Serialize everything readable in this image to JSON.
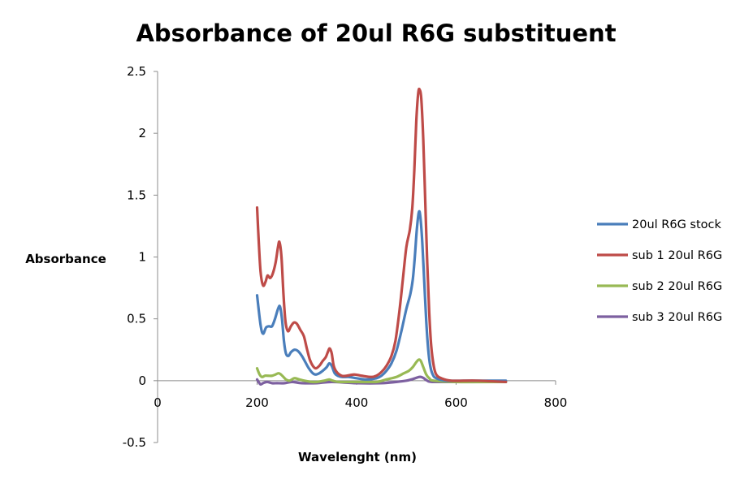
{
  "chart_data": {
    "type": "line",
    "title": "Absorbance  of 20ul R6G substituent",
    "xlabel": "Wavelenght (nm)",
    "ylabel": "Absorbance",
    "xlim": [
      0,
      800
    ],
    "ylim": [
      -0.5,
      2.5
    ],
    "x_ticks": [
      0,
      200,
      400,
      600,
      800
    ],
    "y_ticks": [
      -0.5,
      0,
      0.5,
      1,
      1.5,
      2,
      2.5
    ],
    "x_tick_labels": [
      "0",
      "200",
      "400",
      "600",
      "800"
    ],
    "y_tick_labels": [
      "-0.5",
      "0",
      "0.5",
      "1",
      "1.5",
      "2",
      "2.5"
    ],
    "grid": false,
    "legend_position": "right",
    "series": [
      {
        "name": "20ul R6G stock",
        "color": "#4a7ebb",
        "points": [
          [
            200,
            0.69
          ],
          [
            207,
            0.45
          ],
          [
            212,
            0.38
          ],
          [
            218,
            0.43
          ],
          [
            224,
            0.44
          ],
          [
            230,
            0.44
          ],
          [
            236,
            0.5
          ],
          [
            242,
            0.58
          ],
          [
            246,
            0.6
          ],
          [
            250,
            0.5
          ],
          [
            254,
            0.32
          ],
          [
            258,
            0.22
          ],
          [
            263,
            0.2
          ],
          [
            268,
            0.23
          ],
          [
            275,
            0.25
          ],
          [
            282,
            0.24
          ],
          [
            290,
            0.2
          ],
          [
            297,
            0.15
          ],
          [
            304,
            0.1
          ],
          [
            312,
            0.06
          ],
          [
            318,
            0.05
          ],
          [
            325,
            0.06
          ],
          [
            332,
            0.08
          ],
          [
            340,
            0.11
          ],
          [
            345,
            0.14
          ],
          [
            350,
            0.12
          ],
          [
            356,
            0.06
          ],
          [
            362,
            0.04
          ],
          [
            372,
            0.03
          ],
          [
            385,
            0.03
          ],
          [
            400,
            0.02
          ],
          [
            420,
            0.01
          ],
          [
            440,
            0.02
          ],
          [
            450,
            0.04
          ],
          [
            460,
            0.08
          ],
          [
            470,
            0.14
          ],
          [
            480,
            0.24
          ],
          [
            490,
            0.4
          ],
          [
            500,
            0.58
          ],
          [
            508,
            0.7
          ],
          [
            513,
            0.82
          ],
          [
            517,
            1.0
          ],
          [
            521,
            1.22
          ],
          [
            525,
            1.36
          ],
          [
            528,
            1.33
          ],
          [
            532,
            1.12
          ],
          [
            536,
            0.8
          ],
          [
            540,
            0.48
          ],
          [
            544,
            0.25
          ],
          [
            548,
            0.12
          ],
          [
            553,
            0.05
          ],
          [
            560,
            0.02
          ],
          [
            580,
            0.0
          ],
          [
            620,
            0.0
          ],
          [
            700,
            0.0
          ]
        ]
      },
      {
        "name": "sub 1 20ul R6G",
        "color": "#be4b48",
        "points": [
          [
            200,
            1.4
          ],
          [
            203,
            1.15
          ],
          [
            207,
            0.88
          ],
          [
            212,
            0.77
          ],
          [
            217,
            0.8
          ],
          [
            221,
            0.85
          ],
          [
            226,
            0.83
          ],
          [
            231,
            0.86
          ],
          [
            237,
            0.95
          ],
          [
            242,
            1.08
          ],
          [
            245,
            1.12
          ],
          [
            249,
            1.0
          ],
          [
            253,
            0.7
          ],
          [
            257,
            0.48
          ],
          [
            262,
            0.4
          ],
          [
            268,
            0.44
          ],
          [
            274,
            0.47
          ],
          [
            280,
            0.46
          ],
          [
            287,
            0.41
          ],
          [
            294,
            0.36
          ],
          [
            300,
            0.26
          ],
          [
            306,
            0.17
          ],
          [
            312,
            0.12
          ],
          [
            318,
            0.1
          ],
          [
            325,
            0.12
          ],
          [
            332,
            0.16
          ],
          [
            338,
            0.19
          ],
          [
            343,
            0.24
          ],
          [
            346,
            0.26
          ],
          [
            350,
            0.22
          ],
          [
            354,
            0.12
          ],
          [
            360,
            0.07
          ],
          [
            370,
            0.04
          ],
          [
            380,
            0.04
          ],
          [
            395,
            0.05
          ],
          [
            410,
            0.04
          ],
          [
            430,
            0.03
          ],
          [
            440,
            0.04
          ],
          [
            450,
            0.07
          ],
          [
            460,
            0.12
          ],
          [
            470,
            0.2
          ],
          [
            478,
            0.32
          ],
          [
            486,
            0.56
          ],
          [
            493,
            0.82
          ],
          [
            500,
            1.08
          ],
          [
            507,
            1.22
          ],
          [
            512,
            1.4
          ],
          [
            516,
            1.7
          ],
          [
            520,
            2.1
          ],
          [
            524,
            2.33
          ],
          [
            527,
            2.35
          ],
          [
            530,
            2.28
          ],
          [
            534,
            1.95
          ],
          [
            538,
            1.45
          ],
          [
            542,
            0.95
          ],
          [
            546,
            0.55
          ],
          [
            550,
            0.28
          ],
          [
            555,
            0.12
          ],
          [
            560,
            0.05
          ],
          [
            570,
            0.02
          ],
          [
            590,
            0.0
          ],
          [
            640,
            0.0
          ],
          [
            700,
            -0.01
          ]
        ]
      },
      {
        "name": "sub 2 20ul R6G",
        "color": "#98b954",
        "points": [
          [
            200,
            0.1
          ],
          [
            205,
            0.05
          ],
          [
            210,
            0.03
          ],
          [
            216,
            0.04
          ],
          [
            222,
            0.04
          ],
          [
            230,
            0.04
          ],
          [
            237,
            0.05
          ],
          [
            243,
            0.06
          ],
          [
            248,
            0.05
          ],
          [
            253,
            0.03
          ],
          [
            258,
            0.01
          ],
          [
            265,
            0.0
          ],
          [
            275,
            0.02
          ],
          [
            285,
            0.01
          ],
          [
            295,
            0.0
          ],
          [
            310,
            -0.01
          ],
          [
            320,
            -0.01
          ],
          [
            335,
            0.0
          ],
          [
            345,
            0.01
          ],
          [
            352,
            0.0
          ],
          [
            365,
            -0.01
          ],
          [
            400,
            -0.01
          ],
          [
            440,
            -0.01
          ],
          [
            460,
            0.01
          ],
          [
            480,
            0.03
          ],
          [
            495,
            0.06
          ],
          [
            505,
            0.08
          ],
          [
            513,
            0.11
          ],
          [
            520,
            0.15
          ],
          [
            525,
            0.17
          ],
          [
            529,
            0.16
          ],
          [
            534,
            0.11
          ],
          [
            540,
            0.05
          ],
          [
            546,
            0.02
          ],
          [
            555,
            0.0
          ],
          [
            600,
            -0.01
          ],
          [
            700,
            -0.01
          ]
        ]
      },
      {
        "name": "sub 3 20ul R6G",
        "color": "#7d60a0",
        "points": [
          [
            200,
            0.01
          ],
          [
            203,
            -0.01
          ],
          [
            207,
            -0.03
          ],
          [
            212,
            -0.02
          ],
          [
            220,
            -0.01
          ],
          [
            230,
            -0.02
          ],
          [
            240,
            -0.02
          ],
          [
            255,
            -0.02
          ],
          [
            270,
            -0.01
          ],
          [
            290,
            -0.02
          ],
          [
            320,
            -0.02
          ],
          [
            350,
            -0.01
          ],
          [
            400,
            -0.02
          ],
          [
            450,
            -0.02
          ],
          [
            480,
            -0.01
          ],
          [
            500,
            0.0
          ],
          [
            510,
            0.01
          ],
          [
            518,
            0.02
          ],
          [
            525,
            0.03
          ],
          [
            530,
            0.03
          ],
          [
            535,
            0.02
          ],
          [
            542,
            0.0
          ],
          [
            552,
            -0.01
          ],
          [
            600,
            -0.01
          ],
          [
            700,
            -0.01
          ]
        ]
      }
    ]
  }
}
